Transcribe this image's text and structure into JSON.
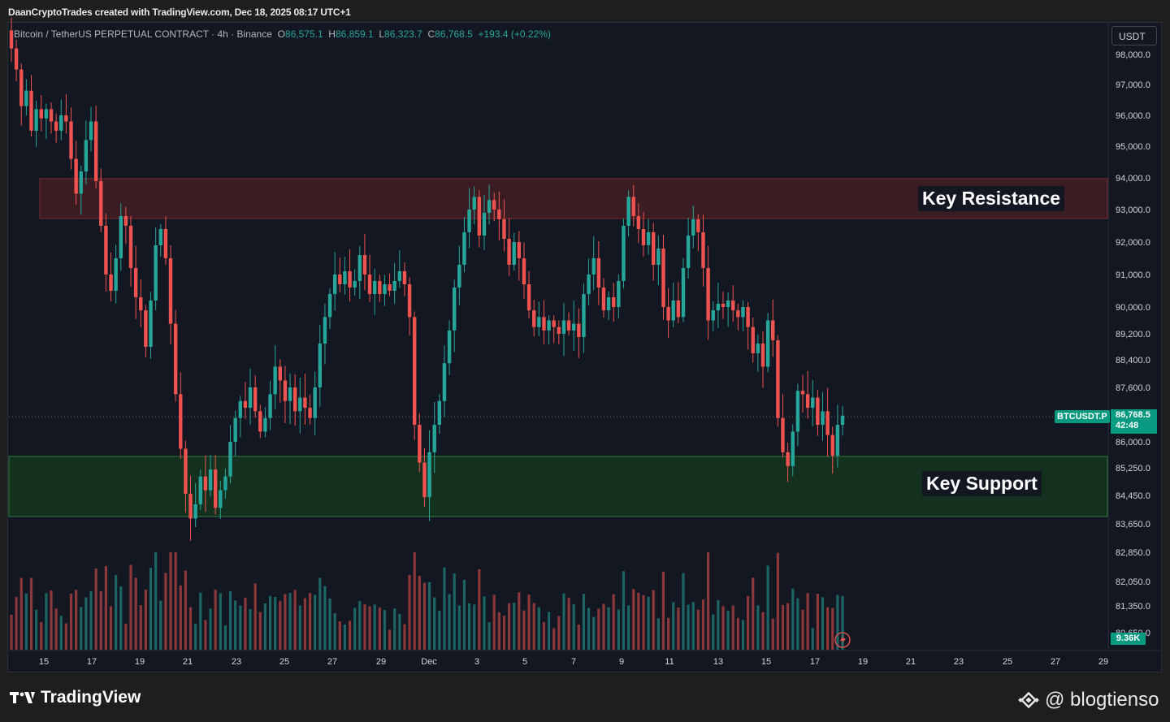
{
  "attribution": "DaanCryptoTrades created with TradingView.com, Dec 18, 2025 08:17 UTC+1",
  "legend": {
    "symbol": "Bitcoin / TetherUS PERPETUAL CONTRACT · 4h · Binance",
    "o_label": "O",
    "o": "86,575.1",
    "h_label": "H",
    "h": "86,859.1",
    "l_label": "L",
    "l": "86,323.7",
    "c_label": "C",
    "c": "86,768.5",
    "change": "+193.4 (+0.22%)"
  },
  "unit_badge": "USDT",
  "price_tag": {
    "symbol": "BTCUSDT.P",
    "price": "86,768.5",
    "countdown": "42:48"
  },
  "volume_tag": "9.36K",
  "zones": {
    "resistance_label": "Key Resistance",
    "support_label": "Key Support"
  },
  "branding": {
    "logo_text": "TradingView",
    "watermark": "@ blogtienso"
  },
  "colors": {
    "up": "#26a69a",
    "down": "#ef5350",
    "background": "#131722",
    "resistance_zone": "#3a1c22",
    "support_zone": "#14301e"
  },
  "chart_data": {
    "type": "candlestick",
    "interval": "4h",
    "y_ticks": [
      "98,000.0",
      "97,000.0",
      "96,000.0",
      "95,000.0",
      "94,000.0",
      "93,000.0",
      "92,000.0",
      "91,000.0",
      "90,000.0",
      "89,200.0",
      "88,400.0",
      "87,600.0",
      "86,000.0",
      "85,250.0",
      "84,450.0",
      "83,650.0",
      "82,850.0",
      "82,050.0",
      "81,350.0",
      "80,650.0"
    ],
    "x_ticks": [
      "15",
      "17",
      "19",
      "21",
      "23",
      "25",
      "27",
      "29",
      "Dec",
      "3",
      "5",
      "7",
      "9",
      "11",
      "13",
      "15",
      "17",
      "19",
      "21",
      "23",
      "25",
      "27",
      "29"
    ],
    "zones": [
      {
        "name": "Key Resistance",
        "from": 92900,
        "to": 94000
      },
      {
        "name": "Key Support",
        "from": 83750,
        "to": 85500
      }
    ],
    "last_price": 86768.5,
    "ohlc_closes_approx": [
      [
        98800,
        98200
      ],
      [
        98200,
        97500
      ],
      [
        97500,
        96300
      ],
      [
        96300,
        96800
      ],
      [
        96800,
        95500
      ],
      [
        95500,
        96200
      ],
      [
        96200,
        95900
      ],
      [
        95900,
        96200
      ],
      [
        96200,
        95800
      ],
      [
        95800,
        95500
      ],
      [
        95500,
        96000
      ],
      [
        96000,
        95800
      ],
      [
        95800,
        94600
      ],
      [
        94600,
        93500
      ],
      [
        93500,
        94200
      ],
      [
        94200,
        95200
      ],
      [
        95200,
        95800
      ],
      [
        95800,
        93900
      ],
      [
        93900,
        92500
      ],
      [
        92500,
        91000
      ],
      [
        91000,
        90500
      ],
      [
        90500,
        91500
      ],
      [
        91500,
        92800
      ],
      [
        92800,
        92500
      ],
      [
        92500,
        91200
      ],
      [
        91200,
        90300
      ],
      [
        90300,
        89900
      ],
      [
        89900,
        88800
      ],
      [
        88800,
        90200
      ],
      [
        90200,
        91900
      ],
      [
        91900,
        92400
      ],
      [
        92400,
        91500
      ],
      [
        91500,
        89500
      ],
      [
        89500,
        87400
      ],
      [
        87400,
        85800
      ],
      [
        85800,
        84500
      ],
      [
        84500,
        83800
      ],
      [
        83800,
        84200
      ],
      [
        84200,
        85000
      ],
      [
        85000,
        84600
      ],
      [
        84600,
        85200
      ],
      [
        85200,
        84100
      ],
      [
        84100,
        84600
      ],
      [
        84600,
        85000
      ],
      [
        85000,
        86000
      ],
      [
        86000,
        86700
      ],
      [
        86700,
        87200
      ],
      [
        87200,
        87000
      ],
      [
        87000,
        87600
      ],
      [
        87600,
        86900
      ],
      [
        86900,
        86300
      ],
      [
        86300,
        86700
      ],
      [
        86700,
        87400
      ],
      [
        87400,
        88200
      ],
      [
        88200,
        87800
      ],
      [
        87800,
        87200
      ],
      [
        87200,
        87600
      ],
      [
        87600,
        86900
      ],
      [
        86900,
        87300
      ],
      [
        87300,
        87000
      ],
      [
        87000,
        86700
      ],
      [
        86700,
        87600
      ],
      [
        87600,
        88900
      ],
      [
        88900,
        89700
      ],
      [
        89700,
        90400
      ],
      [
        90400,
        91000
      ],
      [
        91000,
        90700
      ],
      [
        90700,
        91100
      ],
      [
        91100,
        90600
      ],
      [
        90600,
        90800
      ],
      [
        90800,
        91600
      ],
      [
        91600,
        91000
      ],
      [
        91000,
        90400
      ],
      [
        90400,
        90800
      ],
      [
        90800,
        90400
      ],
      [
        90400,
        90700
      ],
      [
        90700,
        90500
      ],
      [
        90500,
        90800
      ],
      [
        90800,
        91100
      ],
      [
        91100,
        90700
      ],
      [
        90700,
        89700
      ],
      [
        89700,
        86500
      ],
      [
        86500,
        85400
      ],
      [
        85400,
        84400
      ],
      [
        84400,
        85700
      ],
      [
        85700,
        86500
      ],
      [
        86500,
        87200
      ],
      [
        87200,
        88300
      ],
      [
        88300,
        89300
      ],
      [
        89300,
        90600
      ],
      [
        90600,
        91300
      ],
      [
        91300,
        92300
      ],
      [
        92300,
        93000
      ],
      [
        93000,
        93400
      ],
      [
        93400,
        92200
      ],
      [
        92200,
        92900
      ],
      [
        92900,
        93300
      ],
      [
        93300,
        93000
      ],
      [
        93000,
        92700
      ],
      [
        92700,
        92100
      ],
      [
        92100,
        91300
      ],
      [
        91300,
        92000
      ],
      [
        92000,
        91500
      ],
      [
        91500,
        90700
      ],
      [
        90700,
        89900
      ],
      [
        89900,
        89400
      ],
      [
        89400,
        89700
      ],
      [
        89700,
        89300
      ],
      [
        89300,
        89600
      ],
      [
        89600,
        89400
      ],
      [
        89400,
        89200
      ],
      [
        89200,
        89600
      ],
      [
        89600,
        89300
      ],
      [
        89300,
        89500
      ],
      [
        89500,
        89100
      ],
      [
        89100,
        90400
      ],
      [
        90400,
        91000
      ],
      [
        91000,
        91500
      ],
      [
        91500,
        90600
      ],
      [
        90600,
        89900
      ],
      [
        89900,
        90300
      ],
      [
        90300,
        90000
      ],
      [
        90000,
        90800
      ],
      [
        90800,
        92500
      ],
      [
        92500,
        93400
      ],
      [
        93400,
        92800
      ],
      [
        92800,
        92400
      ],
      [
        92400,
        91900
      ],
      [
        91900,
        92300
      ],
      [
        92300,
        91300
      ],
      [
        91300,
        91800
      ],
      [
        91800,
        90000
      ],
      [
        90000,
        89600
      ],
      [
        89600,
        90200
      ],
      [
        90200,
        89700
      ],
      [
        89700,
        91200
      ],
      [
        91200,
        92200
      ],
      [
        92200,
        92700
      ],
      [
        92700,
        92300
      ],
      [
        92300,
        91200
      ],
      [
        91200,
        89600
      ],
      [
        89600,
        89900
      ],
      [
        89900,
        90100
      ],
      [
        90100,
        90000
      ],
      [
        90000,
        90200
      ],
      [
        90200,
        89900
      ],
      [
        89900,
        89700
      ],
      [
        89700,
        90000
      ],
      [
        90000,
        89400
      ],
      [
        89400,
        88600
      ],
      [
        88600,
        88900
      ],
      [
        88900,
        88200
      ],
      [
        88200,
        89600
      ],
      [
        89600,
        89000
      ],
      [
        89000,
        86700
      ],
      [
        86700,
        85700
      ],
      [
        85700,
        85300
      ],
      [
        85300,
        86300
      ],
      [
        86300,
        87500
      ],
      [
        87500,
        87400
      ],
      [
        87400,
        87000
      ],
      [
        87000,
        87300
      ],
      [
        87300,
        86500
      ],
      [
        86500,
        86900
      ],
      [
        86900,
        86200
      ],
      [
        86200,
        85600
      ],
      [
        85600,
        86500
      ],
      [
        86500,
        86769
      ]
    ]
  }
}
